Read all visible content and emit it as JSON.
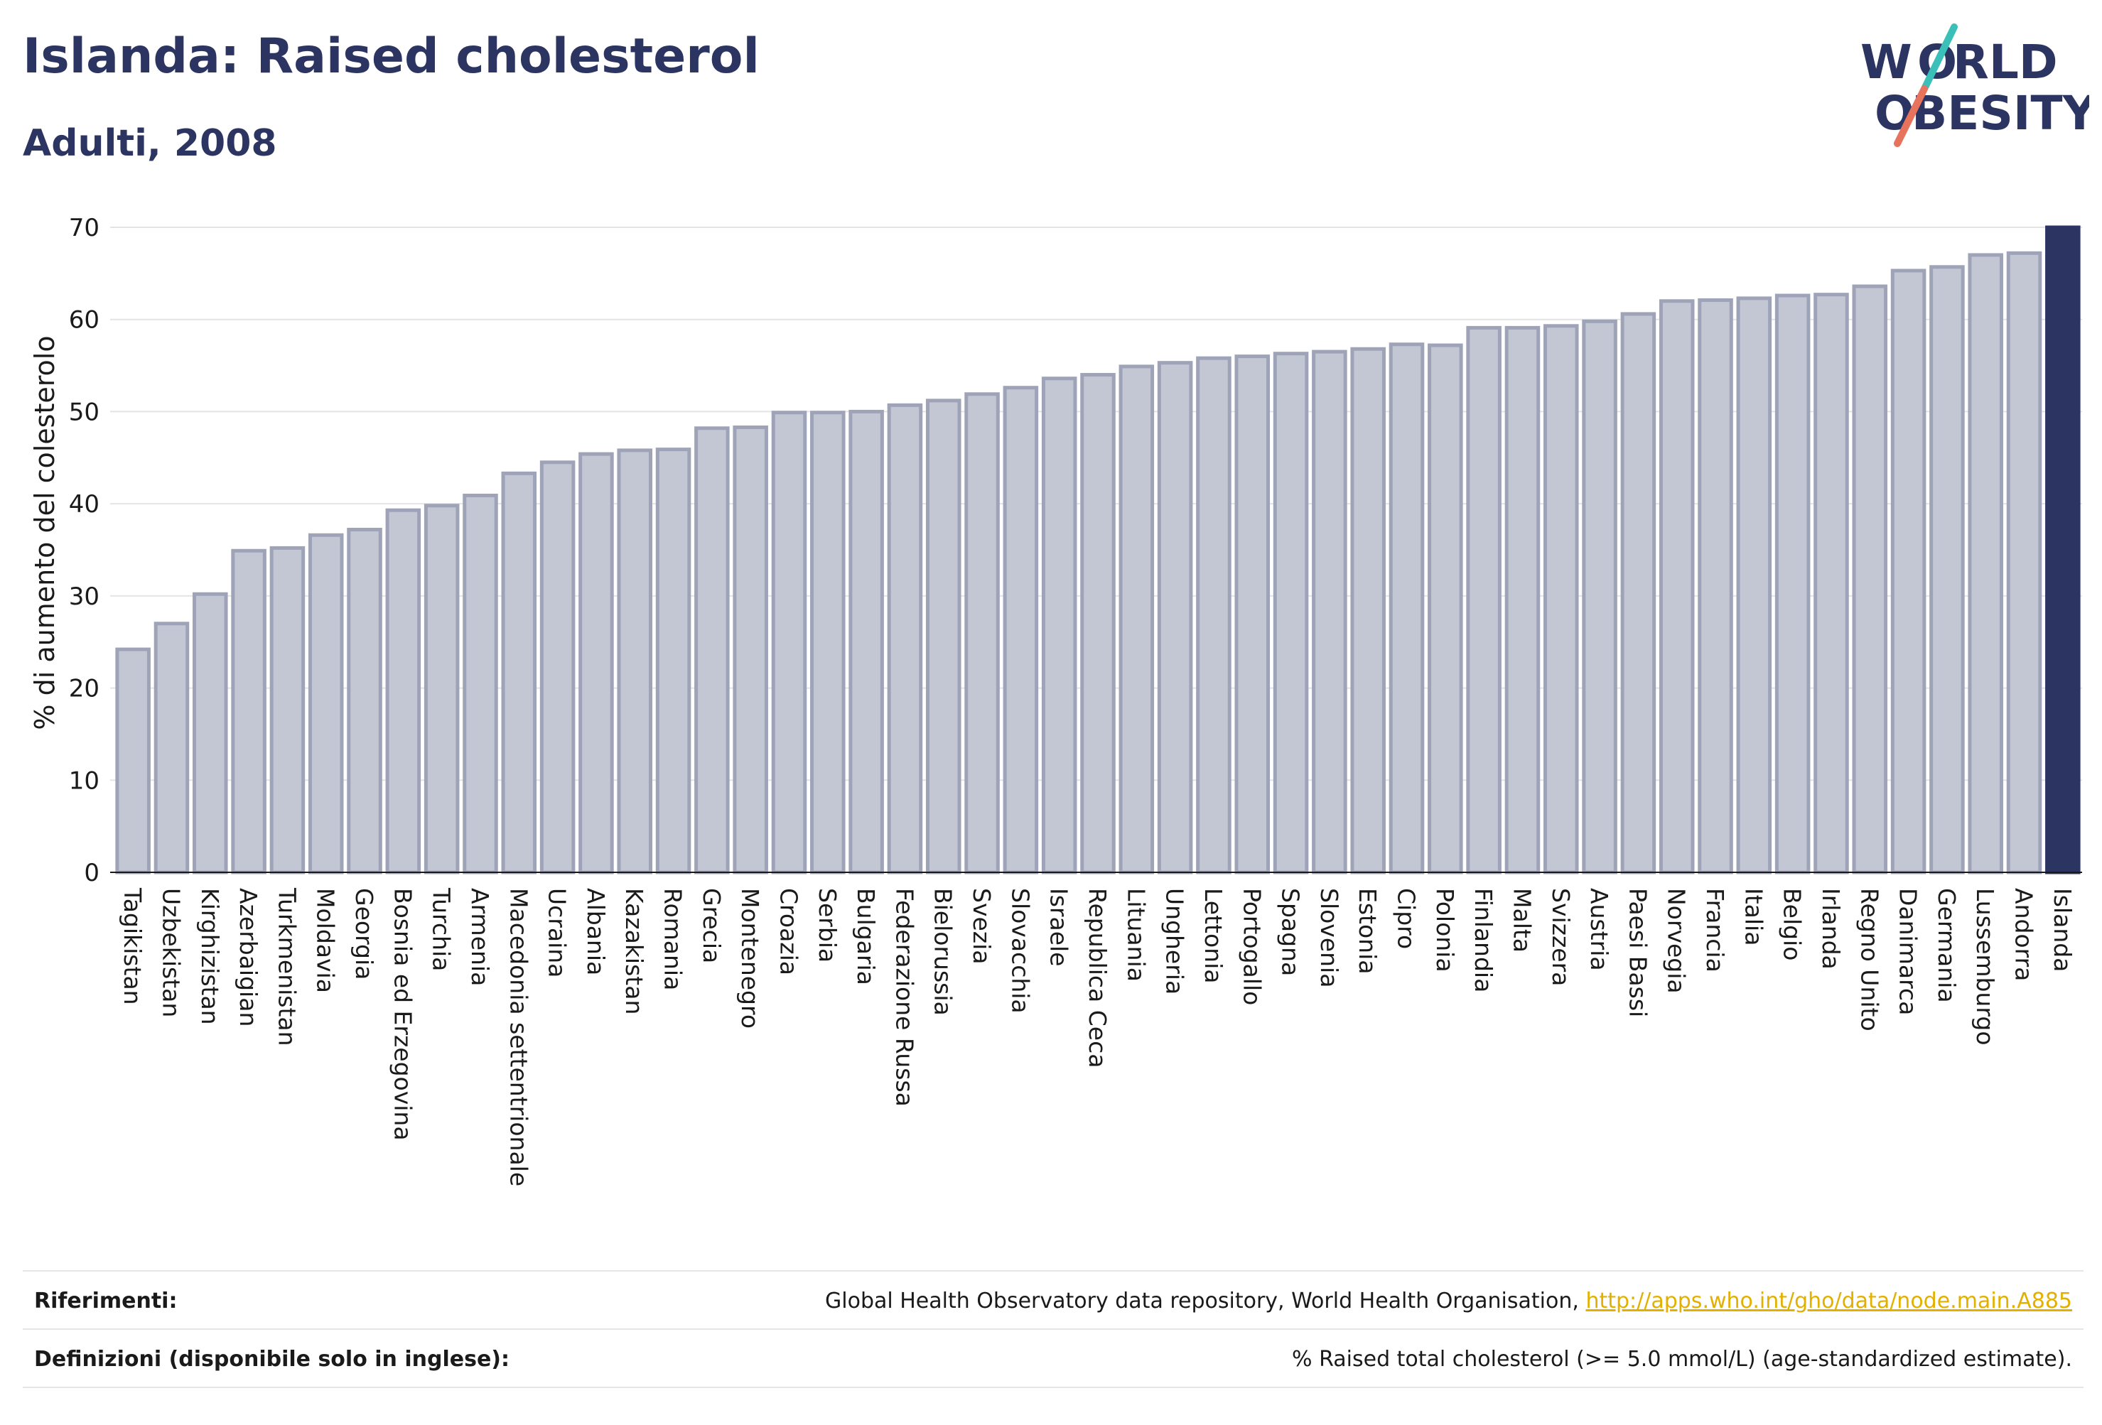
{
  "header": {
    "title": "Islanda: Raised cholesterol",
    "subtitle": "Adulti, 2008",
    "logo_text": "WORLD OBESITY"
  },
  "colors": {
    "bar_fill": "#c3c6d3",
    "bar_stroke": "#9ea3b8",
    "highlight": "#2c3561",
    "accent_teal": "#3bbfb9",
    "accent_coral": "#e8735d"
  },
  "chart_data": {
    "type": "bar",
    "title": "Islanda: Raised cholesterol",
    "subtitle": "Adulti, 2008",
    "ylabel": "% di aumento del colesterolo",
    "xlabel": "",
    "ylim": [
      0,
      70
    ],
    "yticks": [
      0,
      10,
      20,
      30,
      40,
      50,
      60,
      70
    ],
    "grid": true,
    "highlight_category": "Islanda",
    "categories": [
      "Tagikistan",
      "Uzbekistan",
      "Kirghizistan",
      "Azerbaigian",
      "Turkmenistan",
      "Moldavia",
      "Georgia",
      "Bosnia ed Erzegovina",
      "Turchia",
      "Armenia",
      "Macedonia settentrionale",
      "Ucraina",
      "Albania",
      "Kazakistan",
      "Romania",
      "Grecia",
      "Montenegro",
      "Croazia",
      "Serbia",
      "Bulgaria",
      "Federazione Russa",
      "Bielorussia",
      "Svezia",
      "Slovacchia",
      "Israele",
      "Republica Ceca",
      "Lituania",
      "Ungheria",
      "Lettonia",
      "Portogallo",
      "Spagna",
      "Slovenia",
      "Estonia",
      "Cipro",
      "Polonia",
      "Finlandia",
      "Malta",
      "Svizzera",
      "Austria",
      "Paesi Bassi",
      "Norvegia",
      "Francia",
      "Italia",
      "Belgio",
      "Irlanda",
      "Regno Unito",
      "Danimarca",
      "Germania",
      "Lussemburgo",
      "Andorra",
      "Islanda"
    ],
    "values": [
      24.2,
      27.0,
      30.2,
      34.9,
      35.2,
      36.6,
      37.2,
      39.3,
      39.8,
      40.9,
      43.3,
      44.5,
      45.4,
      45.8,
      45.9,
      48.2,
      48.3,
      49.9,
      49.9,
      50.0,
      50.7,
      51.2,
      51.9,
      52.6,
      53.6,
      54.0,
      54.9,
      55.3,
      55.8,
      56.0,
      56.3,
      56.5,
      56.8,
      57.3,
      57.2,
      59.1,
      59.1,
      59.3,
      59.8,
      60.6,
      62.0,
      62.1,
      62.3,
      62.6,
      62.7,
      63.6,
      65.3,
      65.7,
      67.0,
      67.2,
      70.0
    ]
  },
  "footer": {
    "references_label": "Riferimenti:",
    "references_text": "Global Health Observatory data repository, World Health Organisation, ",
    "references_link": "http://apps.who.int/gho/data/node.main.A885",
    "definitions_label": "Definizioni (disponibile solo in inglese):",
    "definitions_text": "% Raised total cholesterol (>= 5.0 mmol/L) (age-standardized estimate)."
  }
}
